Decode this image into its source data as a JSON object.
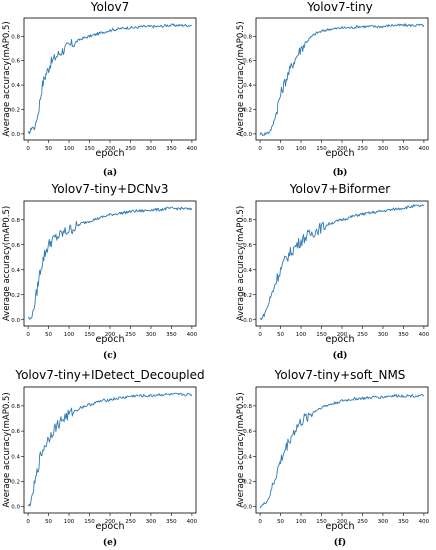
{
  "figure": {
    "line_color": "#2f7bb5",
    "axis_color": "#000000",
    "x_label": "epoch",
    "y_label": "Average accuracy(mAP0.5)"
  },
  "chart_data": [
    {
      "type": "line",
      "title": "Yolov7",
      "caption": "(a)",
      "xlabel": "epoch",
      "ylabel": "Average accuracy(mAP0.5)",
      "xlim": [
        -10,
        410
      ],
      "ylim": [
        -0.05,
        0.95
      ],
      "x_ticks": [
        0,
        50,
        100,
        150,
        200,
        250,
        300,
        350,
        400
      ],
      "y_ticks": [
        0.0,
        0.2,
        0.4,
        0.6,
        0.8
      ],
      "y_tick_labels": [
        "0.0",
        "0.2",
        "0.4",
        "0.6",
        "0.8"
      ],
      "grid": false,
      "series": [
        {
          "x": [
            0,
            5,
            10,
            15,
            20,
            25,
            30,
            35,
            40,
            45,
            50,
            55,
            60,
            70,
            80,
            90,
            100,
            110,
            120,
            130,
            140,
            150,
            160,
            170,
            180,
            200,
            220,
            240,
            260,
            280,
            300,
            320,
            340,
            360,
            380,
            400
          ],
          "y": [
            0.0,
            0.02,
            0.06,
            0.04,
            0.1,
            0.18,
            0.3,
            0.4,
            0.46,
            0.5,
            0.54,
            0.58,
            0.6,
            0.64,
            0.67,
            0.7,
            0.72,
            0.74,
            0.76,
            0.78,
            0.79,
            0.8,
            0.81,
            0.82,
            0.83,
            0.85,
            0.86,
            0.87,
            0.87,
            0.88,
            0.88,
            0.88,
            0.89,
            0.89,
            0.89,
            0.89
          ]
        }
      ]
    },
    {
      "type": "line",
      "title": "Yolov7-tiny",
      "caption": "(b)",
      "xlabel": "epoch",
      "ylabel": "Average accuracy(mAP0.5)",
      "xlim": [
        -10,
        410
      ],
      "ylim": [
        -0.05,
        0.95
      ],
      "x_ticks": [
        0,
        50,
        100,
        150,
        200,
        250,
        300,
        350,
        400
      ],
      "y_ticks": [
        0.0,
        0.2,
        0.4,
        0.6,
        0.8
      ],
      "y_tick_labels": [
        "0.0",
        "0.2",
        "0.4",
        "0.6",
        "0.8"
      ],
      "grid": false,
      "series": [
        {
          "x": [
            0,
            10,
            20,
            25,
            30,
            35,
            40,
            45,
            50,
            60,
            70,
            80,
            90,
            100,
            110,
            120,
            130,
            140,
            150,
            160,
            170,
            180,
            200,
            220,
            240,
            260,
            280,
            300,
            320,
            340,
            360,
            380,
            400
          ],
          "y": [
            0.0,
            0.0,
            0.01,
            0.03,
            0.06,
            0.12,
            0.18,
            0.26,
            0.32,
            0.42,
            0.5,
            0.58,
            0.64,
            0.7,
            0.74,
            0.78,
            0.81,
            0.83,
            0.84,
            0.85,
            0.86,
            0.86,
            0.87,
            0.87,
            0.88,
            0.88,
            0.88,
            0.88,
            0.89,
            0.89,
            0.89,
            0.89,
            0.89
          ]
        }
      ]
    },
    {
      "type": "line",
      "title": "Yolov7-tiny+DCNv3",
      "caption": "(c)",
      "xlabel": "epoch",
      "ylabel": "Average accuracy(mAP0.5)",
      "xlim": [
        -10,
        410
      ],
      "ylim": [
        -0.05,
        0.95
      ],
      "x_ticks": [
        0,
        50,
        100,
        150,
        200,
        250,
        300,
        350,
        400
      ],
      "y_ticks": [
        0.0,
        0.2,
        0.4,
        0.6,
        0.8
      ],
      "y_tick_labels": [
        "0.0",
        "0.2",
        "0.4",
        "0.6",
        "0.8"
      ],
      "grid": false,
      "series": [
        {
          "x": [
            0,
            5,
            10,
            15,
            20,
            25,
            30,
            35,
            40,
            45,
            50,
            55,
            60,
            70,
            80,
            90,
            100,
            110,
            120,
            130,
            140,
            150,
            160,
            170,
            180,
            200,
            220,
            240,
            260,
            280,
            300,
            320,
            340,
            360,
            380,
            400
          ],
          "y": [
            0.02,
            0.0,
            0.04,
            0.1,
            0.2,
            0.3,
            0.4,
            0.46,
            0.52,
            0.56,
            0.6,
            0.62,
            0.64,
            0.66,
            0.68,
            0.7,
            0.72,
            0.73,
            0.75,
            0.77,
            0.78,
            0.79,
            0.8,
            0.81,
            0.82,
            0.84,
            0.85,
            0.86,
            0.87,
            0.87,
            0.88,
            0.88,
            0.89,
            0.89,
            0.89,
            0.88
          ]
        }
      ]
    },
    {
      "type": "line",
      "title": "Yolov7+Biformer",
      "caption": "(d)",
      "xlabel": "epoch",
      "ylabel": "Average accuracy(mAP0.5)",
      "xlim": [
        -10,
        410
      ],
      "ylim": [
        -0.05,
        0.95
      ],
      "x_ticks": [
        0,
        50,
        100,
        150,
        200,
        250,
        300,
        350,
        400
      ],
      "y_ticks": [
        0.0,
        0.2,
        0.4,
        0.6,
        0.8
      ],
      "y_tick_labels": [
        "0.0",
        "0.2",
        "0.4",
        "0.6",
        "0.8"
      ],
      "grid": false,
      "series": [
        {
          "x": [
            0,
            10,
            20,
            30,
            40,
            50,
            60,
            70,
            80,
            90,
            100,
            110,
            120,
            130,
            140,
            150,
            160,
            170,
            180,
            200,
            220,
            240,
            260,
            280,
            300,
            320,
            340,
            360,
            380,
            400
          ],
          "y": [
            0.0,
            0.04,
            0.12,
            0.22,
            0.32,
            0.4,
            0.47,
            0.52,
            0.56,
            0.6,
            0.63,
            0.66,
            0.68,
            0.7,
            0.72,
            0.74,
            0.75,
            0.77,
            0.78,
            0.8,
            0.82,
            0.84,
            0.85,
            0.86,
            0.87,
            0.88,
            0.89,
            0.9,
            0.91,
            0.91
          ]
        }
      ]
    },
    {
      "type": "line",
      "title": "Yolov7-tiny+IDetect_Decoupled",
      "caption": "(e)",
      "xlabel": "epoch",
      "ylabel": "Average accuracy(mAP0.5)",
      "xlim": [
        -10,
        410
      ],
      "ylim": [
        -0.05,
        0.95
      ],
      "x_ticks": [
        0,
        50,
        100,
        150,
        200,
        250,
        300,
        350,
        400
      ],
      "y_ticks": [
        0.0,
        0.2,
        0.4,
        0.6,
        0.8
      ],
      "y_tick_labels": [
        "0.0",
        "0.2",
        "0.4",
        "0.6",
        "0.8"
      ],
      "grid": false,
      "series": [
        {
          "x": [
            0,
            5,
            10,
            15,
            20,
            25,
            30,
            40,
            50,
            60,
            70,
            80,
            90,
            100,
            110,
            120,
            130,
            140,
            150,
            160,
            170,
            180,
            200,
            220,
            240,
            260,
            280,
            300,
            320,
            340,
            360,
            380,
            400
          ],
          "y": [
            0.0,
            0.02,
            0.08,
            0.16,
            0.24,
            0.32,
            0.4,
            0.48,
            0.54,
            0.6,
            0.64,
            0.68,
            0.71,
            0.73,
            0.75,
            0.77,
            0.79,
            0.8,
            0.81,
            0.82,
            0.83,
            0.84,
            0.85,
            0.86,
            0.87,
            0.88,
            0.88,
            0.88,
            0.89,
            0.89,
            0.89,
            0.89,
            0.89
          ]
        }
      ]
    },
    {
      "type": "line",
      "title": "Yolov7-tiny+soft_NMS",
      "caption": "(f)",
      "xlabel": "epoch",
      "ylabel": "Average accuracy(mAP0.5)",
      "xlim": [
        -10,
        410
      ],
      "ylim": [
        -0.05,
        0.95
      ],
      "x_ticks": [
        0,
        50,
        100,
        150,
        200,
        250,
        300,
        350,
        400
      ],
      "y_ticks": [
        0.0,
        0.2,
        0.4,
        0.6,
        0.8
      ],
      "y_tick_labels": [
        "0.0",
        "0.2",
        "0.4",
        "0.6",
        "0.8"
      ],
      "grid": false,
      "series": [
        {
          "x": [
            0,
            10,
            20,
            25,
            30,
            40,
            50,
            60,
            70,
            80,
            90,
            100,
            110,
            120,
            130,
            140,
            150,
            160,
            170,
            180,
            200,
            220,
            240,
            260,
            280,
            300,
            320,
            340,
            360,
            380,
            400
          ],
          "y": [
            0.0,
            0.02,
            0.06,
            0.1,
            0.16,
            0.26,
            0.36,
            0.44,
            0.52,
            0.58,
            0.63,
            0.67,
            0.7,
            0.73,
            0.75,
            0.77,
            0.79,
            0.8,
            0.81,
            0.82,
            0.84,
            0.85,
            0.86,
            0.86,
            0.87,
            0.87,
            0.88,
            0.88,
            0.88,
            0.88,
            0.88
          ]
        }
      ]
    }
  ]
}
